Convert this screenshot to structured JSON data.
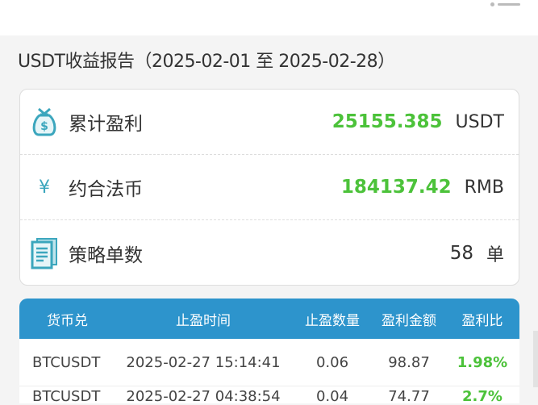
{
  "header": {
    "menu_icon": "more-icon"
  },
  "title": "USDT收益报告（2025-02-01 至 2025-02-28）",
  "summary": [
    {
      "icon": "money-bag-icon",
      "label": "累计盈利",
      "value": "25155.385",
      "unit": "USDT"
    },
    {
      "icon": "yen-icon",
      "icon_glyph": "¥",
      "label": "约合法币",
      "value": "184137.42",
      "unit": "RMB"
    },
    {
      "icon": "document-icon",
      "label": "策略单数",
      "value": "58",
      "unit": "单"
    }
  ],
  "table": {
    "headers": [
      "货币兑",
      "止盈时间",
      "止盈数量",
      "盈利金额",
      "盈利比"
    ],
    "rows": [
      [
        "BTCUSDT",
        "2025-02-27 15:14:41",
        "0.06",
        "98.87",
        "1.98%"
      ],
      [
        "BTCUSDT",
        "2025-02-27 04:38:54",
        "0.04",
        "74.77",
        "2.7%"
      ]
    ]
  },
  "colors": {
    "accent": "#2d94cc",
    "profit": "#4cc23a",
    "icon": "#3ba6bd"
  }
}
